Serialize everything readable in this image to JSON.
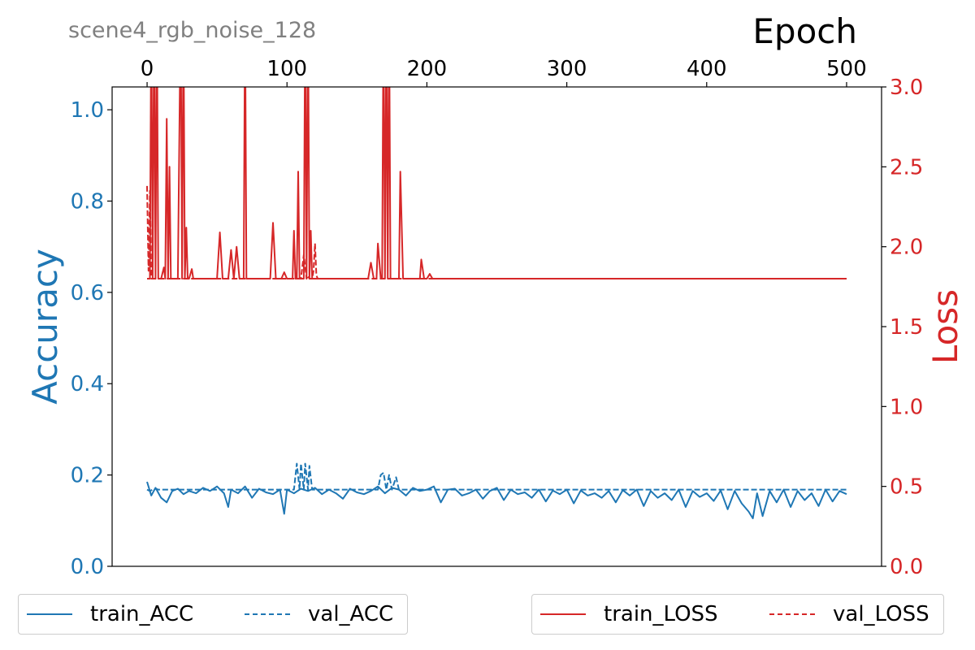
{
  "chart_data": {
    "type": "line",
    "title": "scene4_rgb_noise_128",
    "x_axis": {
      "label": "Epoch",
      "position": "top",
      "range": [
        -25,
        525
      ],
      "ticks": [
        0,
        100,
        200,
        300,
        400,
        500
      ],
      "tick_labels": [
        "0",
        "100",
        "200",
        "300",
        "400",
        "500"
      ]
    },
    "y_left": {
      "label": "Accuracy",
      "range": [
        0.0,
        1.05
      ],
      "ticks": [
        0.0,
        0.2,
        0.4,
        0.6,
        0.8,
        1.0
      ],
      "tick_labels": [
        "0.0",
        "0.2",
        "0.4",
        "0.6",
        "0.8",
        "1.0"
      ]
    },
    "y_right": {
      "label": "Loss",
      "range": [
        0.0,
        3.0
      ],
      "ticks": [
        0.0,
        0.5,
        1.0,
        1.5,
        2.0,
        2.5,
        3.0
      ],
      "tick_labels": [
        "0.0",
        "0.5",
        "1.0",
        "1.5",
        "2.0",
        "2.5",
        "3.0"
      ]
    },
    "grid": false,
    "series": [
      {
        "name": "train_ACC",
        "axis": "left",
        "style": "solid",
        "color": "#1f77b4",
        "x": [
          0,
          3,
          6,
          10,
          14,
          18,
          22,
          26,
          30,
          35,
          40,
          45,
          50,
          55,
          58,
          60,
          65,
          70,
          75,
          80,
          85,
          90,
          95,
          98,
          100,
          105,
          110,
          115,
          120,
          125,
          130,
          135,
          140,
          145,
          150,
          155,
          160,
          165,
          170,
          175,
          180,
          185,
          190,
          195,
          200,
          205,
          210,
          215,
          220,
          225,
          230,
          235,
          240,
          245,
          250,
          255,
          260,
          265,
          270,
          275,
          280,
          285,
          290,
          295,
          300,
          305,
          310,
          315,
          320,
          325,
          330,
          335,
          340,
          345,
          350,
          355,
          360,
          365,
          370,
          375,
          380,
          385,
          390,
          395,
          400,
          405,
          410,
          415,
          420,
          425,
          430,
          433,
          436,
          440,
          445,
          450,
          455,
          460,
          465,
          470,
          475,
          480,
          485,
          490,
          495,
          500
        ],
        "y": [
          0.185,
          0.155,
          0.172,
          0.15,
          0.14,
          0.165,
          0.17,
          0.158,
          0.165,
          0.16,
          0.172,
          0.165,
          0.175,
          0.16,
          0.13,
          0.168,
          0.16,
          0.175,
          0.15,
          0.17,
          0.162,
          0.158,
          0.168,
          0.115,
          0.168,
          0.16,
          0.17,
          0.165,
          0.172,
          0.158,
          0.168,
          0.16,
          0.148,
          0.17,
          0.162,
          0.158,
          0.165,
          0.175,
          0.16,
          0.172,
          0.168,
          0.155,
          0.172,
          0.165,
          0.168,
          0.175,
          0.14,
          0.168,
          0.17,
          0.155,
          0.16,
          0.168,
          0.148,
          0.165,
          0.172,
          0.145,
          0.168,
          0.158,
          0.162,
          0.15,
          0.168,
          0.142,
          0.166,
          0.158,
          0.168,
          0.138,
          0.166,
          0.155,
          0.16,
          0.15,
          0.165,
          0.14,
          0.167,
          0.155,
          0.168,
          0.132,
          0.165,
          0.15,
          0.16,
          0.145,
          0.168,
          0.13,
          0.165,
          0.152,
          0.16,
          0.143,
          0.166,
          0.125,
          0.165,
          0.138,
          0.12,
          0.105,
          0.16,
          0.11,
          0.165,
          0.14,
          0.168,
          0.13,
          0.165,
          0.145,
          0.16,
          0.132,
          0.168,
          0.142,
          0.165,
          0.158
        ]
      },
      {
        "name": "val_ACC",
        "axis": "left",
        "style": "dashed",
        "color": "#1f77b4",
        "x": [
          0,
          2,
          4,
          6,
          8,
          10,
          105,
          107,
          109,
          110,
          112,
          113,
          115,
          116,
          118,
          120,
          165,
          167,
          169,
          171,
          173,
          175,
          178,
          180,
          500
        ],
        "y": [
          0.168,
          0.165,
          0.168,
          0.17,
          0.168,
          0.168,
          0.168,
          0.225,
          0.168,
          0.225,
          0.168,
          0.225,
          0.168,
          0.22,
          0.168,
          0.168,
          0.168,
          0.2,
          0.205,
          0.168,
          0.2,
          0.168,
          0.195,
          0.168,
          0.168
        ]
      },
      {
        "name": "train_LOSS",
        "axis": "right",
        "style": "solid",
        "color": "#d62728",
        "x": [
          0,
          2,
          3,
          4,
          5,
          6,
          7,
          8,
          10,
          12,
          13,
          14,
          15,
          16,
          17,
          18,
          20,
          22,
          24,
          25,
          26,
          27,
          28,
          29,
          30,
          32,
          33,
          34,
          40,
          50,
          52,
          54,
          58,
          60,
          62,
          64,
          66,
          69,
          70,
          71,
          73,
          80,
          88,
          90,
          92,
          96,
          98,
          100,
          104,
          105,
          106,
          107,
          108,
          109,
          110,
          112,
          113,
          114,
          115,
          116,
          117,
          118,
          120,
          122,
          130,
          150,
          158,
          160,
          162,
          164,
          165,
          167,
          168,
          169,
          170,
          171,
          172,
          173,
          174,
          175,
          176,
          178,
          180,
          181,
          183,
          185,
          190,
          195,
          196,
          198,
          200,
          202,
          204,
          210,
          500
        ],
        "y": [
          1.8,
          1.8,
          3.5,
          1.8,
          3.5,
          1.8,
          3.5,
          1.8,
          1.8,
          1.87,
          1.8,
          2.8,
          1.8,
          2.5,
          1.8,
          1.8,
          1.8,
          1.8,
          3.5,
          1.8,
          3.5,
          1.8,
          2.12,
          1.8,
          1.8,
          1.86,
          1.8,
          1.8,
          1.8,
          1.8,
          2.09,
          1.8,
          1.8,
          1.98,
          1.8,
          2.0,
          1.8,
          1.8,
          3.5,
          1.8,
          1.8,
          1.8,
          1.8,
          2.15,
          1.8,
          1.8,
          1.84,
          1.8,
          1.8,
          2.1,
          1.8,
          1.8,
          2.47,
          1.8,
          1.8,
          1.8,
          3.5,
          1.8,
          3.5,
          1.8,
          2.1,
          1.8,
          1.8,
          1.8,
          1.8,
          1.8,
          1.8,
          1.9,
          1.8,
          1.8,
          2.02,
          1.8,
          1.8,
          3.5,
          1.8,
          3.5,
          1.8,
          3.5,
          1.8,
          1.8,
          1.8,
          1.8,
          1.8,
          2.47,
          1.8,
          1.8,
          1.8,
          1.8,
          1.92,
          1.8,
          1.8,
          1.83,
          1.8,
          1.8,
          1.8
        ]
      },
      {
        "name": "val_LOSS",
        "axis": "right",
        "style": "dashed",
        "color": "#d62728",
        "x": [
          0,
          1,
          2,
          3,
          5,
          105,
          110,
          112,
          114,
          115,
          116,
          118,
          119,
          120,
          121,
          122,
          125,
          500
        ],
        "y": [
          2.38,
          1.85,
          2.35,
          1.8,
          1.8,
          1.8,
          1.8,
          1.95,
          1.8,
          1.82,
          1.8,
          1.8,
          1.85,
          2.02,
          1.82,
          1.8,
          1.8,
          1.8
        ]
      }
    ]
  },
  "legend_left": [
    {
      "label": "train_ACC",
      "color": "#1f77b4",
      "style": "solid"
    },
    {
      "label": "val_ACC",
      "color": "#1f77b4",
      "style": "dashed"
    }
  ],
  "legend_right": [
    {
      "label": "train_LOSS",
      "color": "#d62728",
      "style": "solid"
    },
    {
      "label": "val_LOSS",
      "color": "#d62728",
      "style": "dashed"
    }
  ]
}
